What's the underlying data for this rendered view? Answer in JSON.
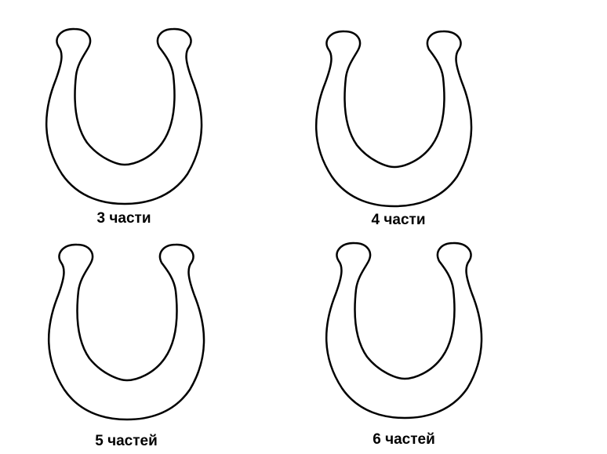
{
  "items": [
    {
      "label": "3 части"
    },
    {
      "label": "4 части"
    },
    {
      "label": "5 частей"
    },
    {
      "label": "6 частей"
    }
  ],
  "colors": {
    "outline": "#000000",
    "fill": "#ffffff"
  },
  "icons": [
    "horseshoe-icon"
  ]
}
